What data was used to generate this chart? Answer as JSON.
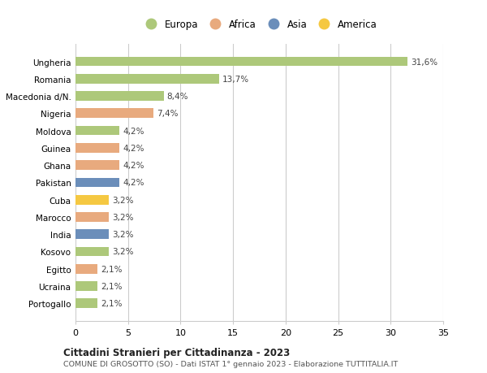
{
  "categories": [
    "Portogallo",
    "Ucraina",
    "Egitto",
    "Kosovo",
    "India",
    "Marocco",
    "Cuba",
    "Pakistan",
    "Ghana",
    "Guinea",
    "Moldova",
    "Nigeria",
    "Macedonia d/N.",
    "Romania",
    "Ungheria"
  ],
  "values": [
    2.1,
    2.1,
    2.1,
    3.2,
    3.2,
    3.2,
    3.2,
    4.2,
    4.2,
    4.2,
    4.2,
    7.4,
    8.4,
    13.7,
    31.6
  ],
  "labels": [
    "2,1%",
    "2,1%",
    "2,1%",
    "3,2%",
    "3,2%",
    "3,2%",
    "3,2%",
    "4,2%",
    "4,2%",
    "4,2%",
    "4,2%",
    "7,4%",
    "8,4%",
    "13,7%",
    "31,6%"
  ],
  "colors": [
    "#adc87a",
    "#adc87a",
    "#e8aa7e",
    "#adc87a",
    "#6b8eba",
    "#e8aa7e",
    "#f5c842",
    "#6b8eba",
    "#e8aa7e",
    "#e8aa7e",
    "#adc87a",
    "#e8aa7e",
    "#adc87a",
    "#adc87a",
    "#adc87a"
  ],
  "legend_labels": [
    "Europa",
    "Africa",
    "Asia",
    "America"
  ],
  "legend_colors": [
    "#adc87a",
    "#e8aa7e",
    "#6b8eba",
    "#f5c842"
  ],
  "title": "Cittadini Stranieri per Cittadinanza - 2023",
  "subtitle": "COMUNE DI GROSOTTO (SO) - Dati ISTAT 1° gennaio 2023 - Elaborazione TUTTITALIA.IT",
  "xlim": [
    0,
    35
  ],
  "xticks": [
    0,
    5,
    10,
    15,
    20,
    25,
    30,
    35
  ],
  "background_color": "#ffffff",
  "grid_color": "#cccccc",
  "bar_height": 0.55
}
